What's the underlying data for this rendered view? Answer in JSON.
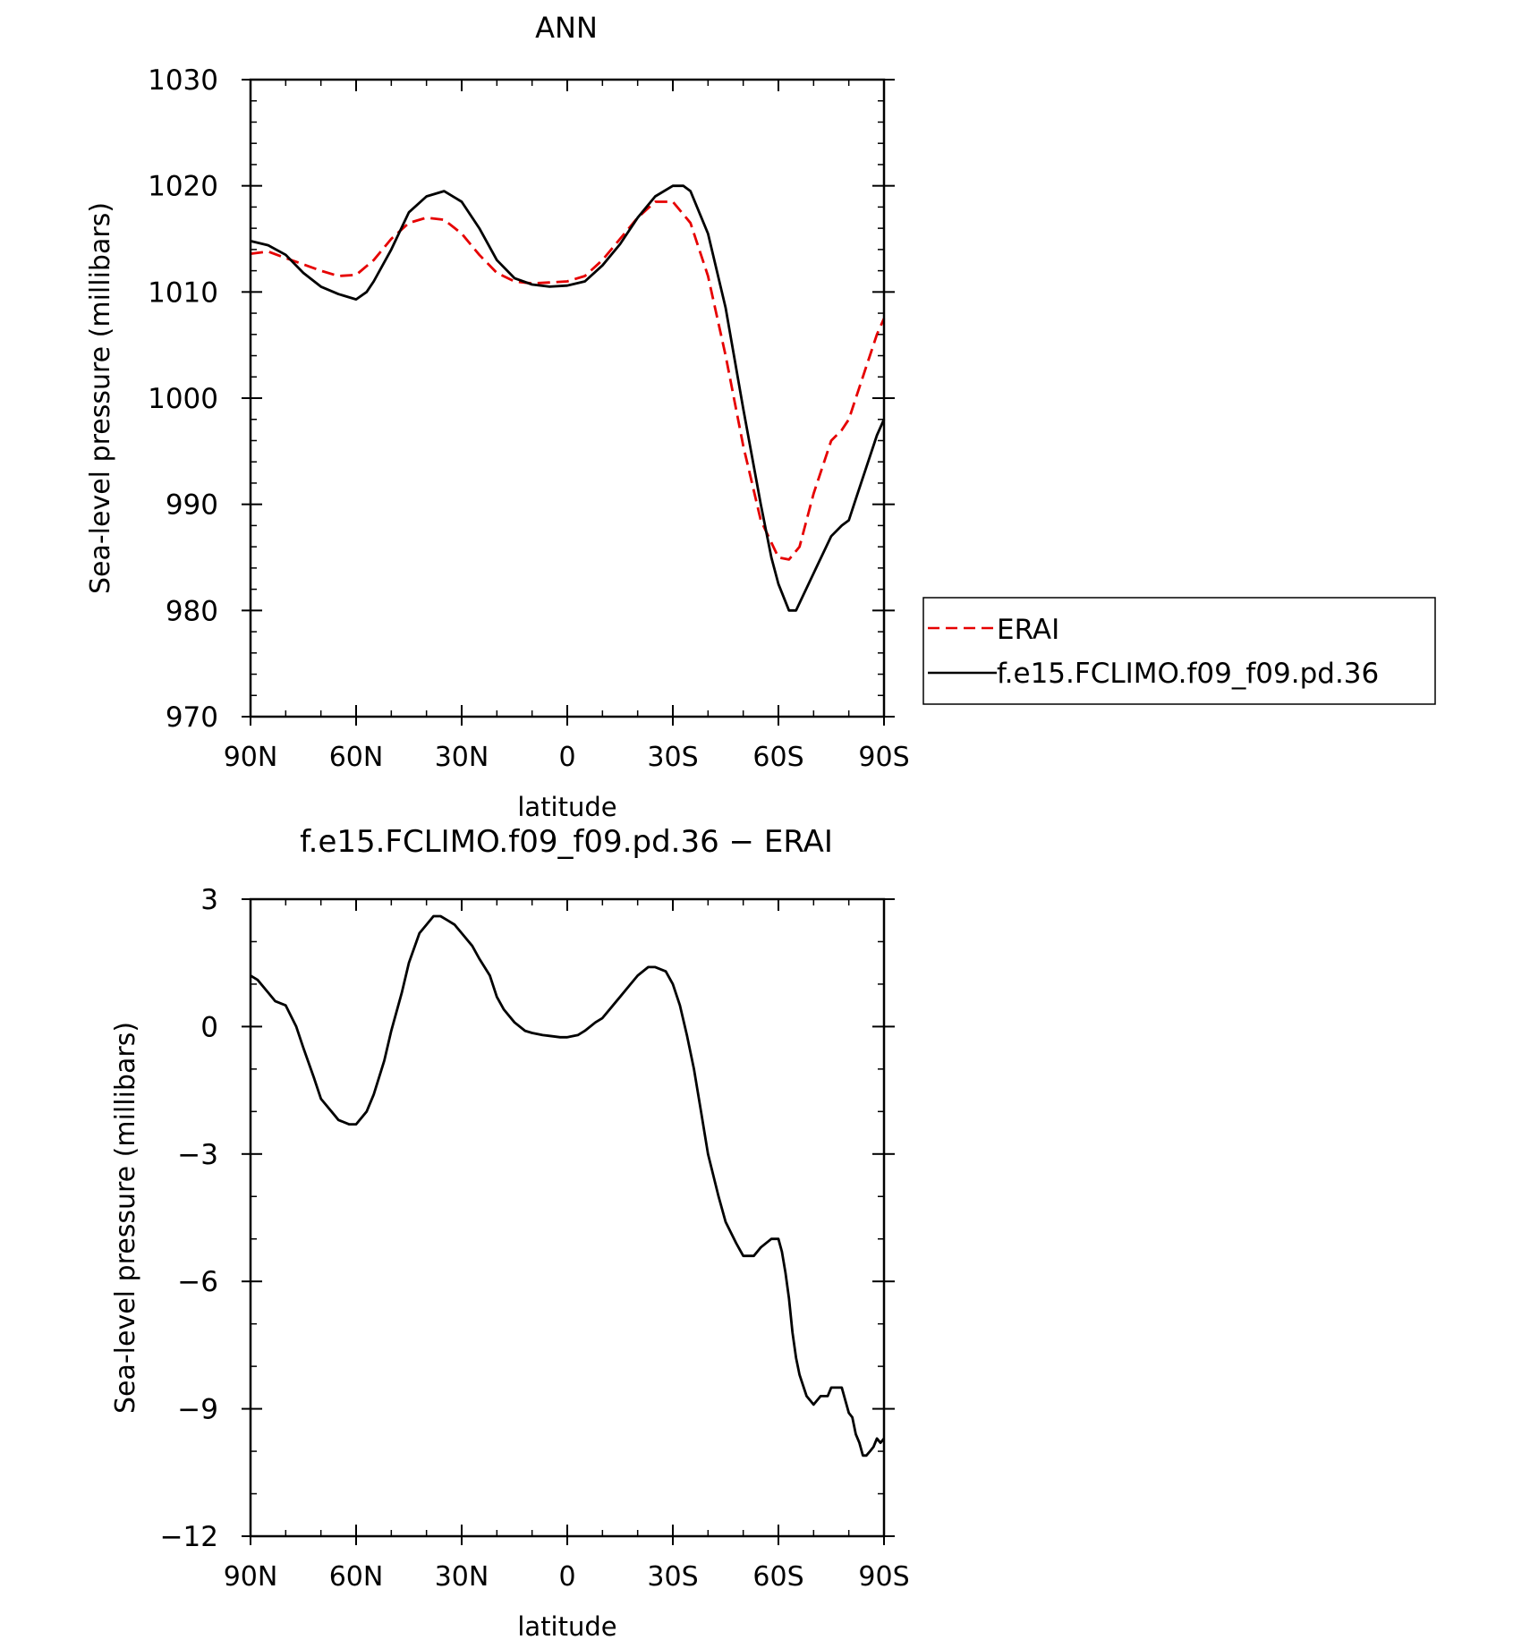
{
  "chart_data": [
    {
      "type": "line",
      "title": "ANN",
      "xlabel": "latitude",
      "ylabel": "Sea-level pressure (millibars)",
      "x_ticks": [
        "90N",
        "60N",
        "30N",
        "0",
        "30S",
        "60S",
        "90S"
      ],
      "x_tick_values": [
        90,
        60,
        30,
        0,
        -30,
        -60,
        -90
      ],
      "xlim": [
        90,
        -90
      ],
      "ylim": [
        970,
        1030
      ],
      "y_ticks": [
        970,
        980,
        990,
        1000,
        1010,
        1020,
        1030
      ],
      "series": [
        {
          "name": "ERAI",
          "color": "#e60000",
          "dash": "dashed",
          "x": [
            90,
            85,
            80,
            75,
            70,
            65,
            60,
            55,
            50,
            45,
            40,
            35,
            30,
            25,
            20,
            15,
            10,
            5,
            0,
            -5,
            -10,
            -15,
            -20,
            -25,
            -30,
            -35,
            -40,
            -45,
            -50,
            -55,
            -60,
            -63,
            -66,
            -70,
            -75,
            -78,
            -80,
            -82,
            -85,
            -88,
            -90
          ],
          "values": [
            1013.6,
            1013.8,
            1013.2,
            1012.6,
            1012.0,
            1011.5,
            1011.6,
            1013.0,
            1015.0,
            1016.5,
            1017.0,
            1016.8,
            1015.5,
            1013.5,
            1011.8,
            1011.0,
            1010.8,
            1010.9,
            1011.0,
            1011.5,
            1013.0,
            1015.0,
            1017.0,
            1018.5,
            1018.5,
            1016.5,
            1011.5,
            1004.0,
            995.5,
            988.5,
            985.0,
            984.8,
            986.0,
            991.0,
            996.0,
            997.0,
            998.0,
            1000.0,
            1003.0,
            1006.0,
            1007.5
          ]
        },
        {
          "name": "f.e15.FCLIMO.f09_f09.pd.36",
          "color": "#000000",
          "dash": "solid",
          "x": [
            90,
            85,
            80,
            75,
            70,
            65,
            60,
            57,
            55,
            50,
            45,
            40,
            35,
            30,
            25,
            20,
            15,
            10,
            5,
            0,
            -5,
            -10,
            -15,
            -20,
            -25,
            -30,
            -33,
            -35,
            -40,
            -45,
            -50,
            -55,
            -58,
            -60,
            -63,
            -65,
            -70,
            -75,
            -78,
            -80,
            -82,
            -85,
            -88,
            -90
          ],
          "values": [
            1014.8,
            1014.4,
            1013.5,
            1011.8,
            1010.5,
            1009.8,
            1009.3,
            1010.0,
            1011.0,
            1014.0,
            1017.5,
            1019.0,
            1019.5,
            1018.5,
            1016.0,
            1013.0,
            1011.3,
            1010.7,
            1010.5,
            1010.6,
            1011.0,
            1012.5,
            1014.5,
            1017.0,
            1019.0,
            1020.0,
            1020.0,
            1019.5,
            1015.5,
            1008.5,
            999.0,
            990.0,
            985.0,
            982.5,
            980.0,
            980.0,
            983.5,
            987.0,
            988.0,
            988.5,
            990.5,
            993.5,
            996.5,
            998.0
          ]
        }
      ],
      "legend": "right, outside plot",
      "grid": false
    },
    {
      "type": "line",
      "title": "f.e15.FCLIMO.f09_f09.pd.36 − ERAI",
      "xlabel": "latitude",
      "ylabel": "Sea-level pressure (millibars)",
      "x_ticks": [
        "90N",
        "60N",
        "30N",
        "0",
        "30S",
        "60S",
        "90S"
      ],
      "x_tick_values": [
        90,
        60,
        30,
        0,
        -30,
        -60,
        -90
      ],
      "xlim": [
        90,
        -90
      ],
      "ylim": [
        -12,
        3
      ],
      "y_ticks": [
        -12,
        -9,
        -6,
        -3,
        0,
        3
      ],
      "series": [
        {
          "color": "#000000",
          "dash": "solid",
          "x": [
            90,
            88,
            85,
            83,
            80,
            77,
            75,
            72,
            70,
            67,
            65,
            62,
            60,
            57,
            55,
            52,
            50,
            47,
            45,
            42,
            40,
            38,
            36,
            34,
            32,
            30,
            27,
            25,
            22,
            20,
            18,
            15,
            12,
            10,
            7,
            5,
            2,
            0,
            -3,
            -5,
            -8,
            -10,
            -13,
            -15,
            -18,
            -20,
            -23,
            -25,
            -28,
            -30,
            -32,
            -34,
            -36,
            -38,
            -40,
            -43,
            -45,
            -48,
            -50,
            -53,
            -55,
            -58,
            -60,
            -61,
            -62,
            -63,
            -64,
            -65,
            -66,
            -68,
            -70,
            -72,
            -74,
            -75,
            -77,
            -78,
            -80,
            -81,
            -82,
            -83,
            -84,
            -85,
            -86,
            -87,
            -88,
            -89,
            -90
          ],
          "values": [
            1.2,
            1.1,
            0.8,
            0.6,
            0.5,
            0.0,
            -0.5,
            -1.2,
            -1.7,
            -2.0,
            -2.2,
            -2.3,
            -2.3,
            -2.0,
            -1.6,
            -0.8,
            -0.1,
            0.8,
            1.5,
            2.2,
            2.4,
            2.6,
            2.6,
            2.5,
            2.4,
            2.2,
            1.9,
            1.6,
            1.2,
            0.7,
            0.4,
            0.1,
            -0.1,
            -0.15,
            -0.2,
            -0.22,
            -0.25,
            -0.25,
            -0.2,
            -0.1,
            0.1,
            0.2,
            0.5,
            0.7,
            1.0,
            1.2,
            1.4,
            1.4,
            1.3,
            1.0,
            0.5,
            -0.2,
            -1.0,
            -2.0,
            -3.0,
            -4.0,
            -4.6,
            -5.1,
            -5.4,
            -5.4,
            -5.2,
            -5.0,
            -5.0,
            -5.3,
            -5.8,
            -6.4,
            -7.2,
            -7.8,
            -8.2,
            -8.7,
            -8.9,
            -8.7,
            -8.7,
            -8.5,
            -8.5,
            -8.5,
            -9.1,
            -9.2,
            -9.6,
            -9.8,
            -10.1,
            -10.1,
            -10.0,
            -9.9,
            -9.7,
            -9.8,
            -9.7
          ]
        }
      ],
      "grid": false
    }
  ]
}
